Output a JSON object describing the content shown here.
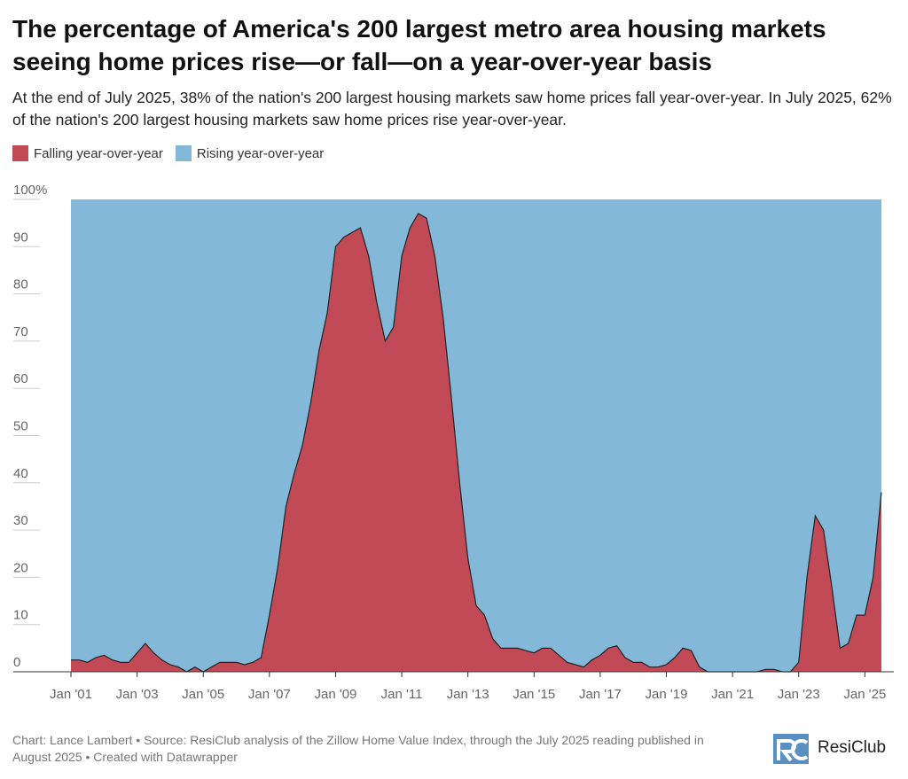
{
  "chart_data": {
    "type": "area",
    "title": "The percentage of America's 200 largest metro area housing markets seeing home prices rise—or fall—on a year-over-year basis",
    "subtitle": "At the end of July 2025, 38% of the nation's 200 largest housing markets saw home prices fall year-over-year. In July 2025, 62% of the nation's 200 largest housing markets saw home prices rise year-over-year.",
    "note": "Chart: Lance Lambert • Source: ResiClub analysis of the Zillow Home Value Index, through the July 2025 reading published in August 2025 • Created with Datawrapper",
    "brand": "ResiClub",
    "stacked": true,
    "x": [
      2001,
      2001.25,
      2001.5,
      2001.75,
      2002,
      2002.25,
      2002.5,
      2002.75,
      2003,
      2003.25,
      2003.5,
      2003.75,
      2004,
      2004.25,
      2004.5,
      2004.75,
      2005,
      2005.25,
      2005.5,
      2005.75,
      2006,
      2006.25,
      2006.5,
      2006.75,
      2007,
      2007.25,
      2007.5,
      2007.75,
      2008,
      2008.25,
      2008.5,
      2008.75,
      2009,
      2009.25,
      2009.5,
      2009.75,
      2010,
      2010.25,
      2010.5,
      2010.75,
      2011,
      2011.25,
      2011.5,
      2011.75,
      2012,
      2012.25,
      2012.5,
      2012.75,
      2013,
      2013.25,
      2013.5,
      2013.75,
      2014,
      2014.25,
      2014.5,
      2014.75,
      2015,
      2015.25,
      2015.5,
      2015.75,
      2016,
      2016.25,
      2016.5,
      2016.75,
      2017,
      2017.25,
      2017.5,
      2017.75,
      2018,
      2018.25,
      2018.5,
      2018.75,
      2019,
      2019.25,
      2019.5,
      2019.75,
      2020,
      2020.25,
      2020.5,
      2020.75,
      2021,
      2021.25,
      2021.5,
      2021.75,
      2022,
      2022.25,
      2022.5,
      2022.75,
      2023,
      2023.25,
      2023.5,
      2023.75,
      2024,
      2024.25,
      2024.5,
      2024.75,
      2025,
      2025.25,
      2025.5
    ],
    "series": [
      {
        "name": "Falling year-over-year",
        "color": "#c24a56",
        "values": [
          2.5,
          2.5,
          2,
          3,
          3.5,
          2.5,
          2,
          2,
          4,
          6,
          4,
          2.5,
          1.5,
          1,
          0,
          1,
          0,
          1,
          2,
          2,
          2,
          1.5,
          2,
          3,
          12,
          22,
          35,
          42,
          48,
          57,
          68,
          76,
          90,
          92,
          93,
          94,
          88,
          78,
          70,
          73,
          88,
          94,
          97,
          96,
          88,
          75,
          58,
          40,
          24,
          14,
          12,
          7,
          5,
          5,
          5,
          4.5,
          4,
          5,
          5,
          3.5,
          2,
          1.5,
          1,
          2.5,
          3.5,
          5,
          5.5,
          3,
          2,
          2,
          1,
          1,
          1.5,
          3,
          5,
          4.5,
          1,
          0,
          0,
          0,
          0,
          0,
          0,
          0,
          0.5,
          0.5,
          0,
          0,
          2,
          20,
          33,
          30,
          18,
          5,
          6,
          12,
          12,
          20,
          38
        ]
      },
      {
        "name": "Rising year-over-year",
        "color": "#84b8d9",
        "values": [
          97.5,
          97.5,
          98,
          97,
          96.5,
          97.5,
          98,
          98,
          96,
          94,
          96,
          97.5,
          98.5,
          99,
          100,
          99,
          100,
          99,
          98,
          98,
          98,
          98.5,
          98,
          97,
          88,
          78,
          65,
          58,
          52,
          43,
          32,
          24,
          10,
          8,
          7,
          6,
          12,
          22,
          30,
          27,
          12,
          6,
          3,
          4,
          12,
          25,
          42,
          60,
          76,
          86,
          88,
          93,
          95,
          95,
          95,
          95.5,
          96,
          95,
          95,
          96.5,
          98,
          98.5,
          99,
          97.5,
          96.5,
          95,
          94.5,
          97,
          98,
          98,
          99,
          99,
          98.5,
          97,
          95,
          95.5,
          99,
          100,
          100,
          100,
          100,
          100,
          100,
          100,
          99.5,
          99.5,
          100,
          100,
          98,
          80,
          67,
          70,
          82,
          95,
          94,
          88,
          88,
          80,
          62
        ]
      }
    ],
    "xlim": [
      2001,
      2025.5
    ],
    "xticks": [
      {
        "value": 2001,
        "label": "Jan '01"
      },
      {
        "value": 2003,
        "label": "Jan '03"
      },
      {
        "value": 2005,
        "label": "Jan '05"
      },
      {
        "value": 2007,
        "label": "Jan '07"
      },
      {
        "value": 2009,
        "label": "Jan '09"
      },
      {
        "value": 2011,
        "label": "Jan '11"
      },
      {
        "value": 2013,
        "label": "Jan '13"
      },
      {
        "value": 2015,
        "label": "Jan '15"
      },
      {
        "value": 2017,
        "label": "Jan '17"
      },
      {
        "value": 2019,
        "label": "Jan '19"
      },
      {
        "value": 2021,
        "label": "Jan '21"
      },
      {
        "value": 2023,
        "label": "Jan '23"
      },
      {
        "value": 2025,
        "label": "Jan '25"
      }
    ],
    "ylim": [
      0,
      100
    ],
    "yticks": [
      0,
      10,
      20,
      30,
      40,
      50,
      60,
      70,
      80,
      90,
      {
        "value": 100,
        "label": "100%"
      }
    ]
  }
}
